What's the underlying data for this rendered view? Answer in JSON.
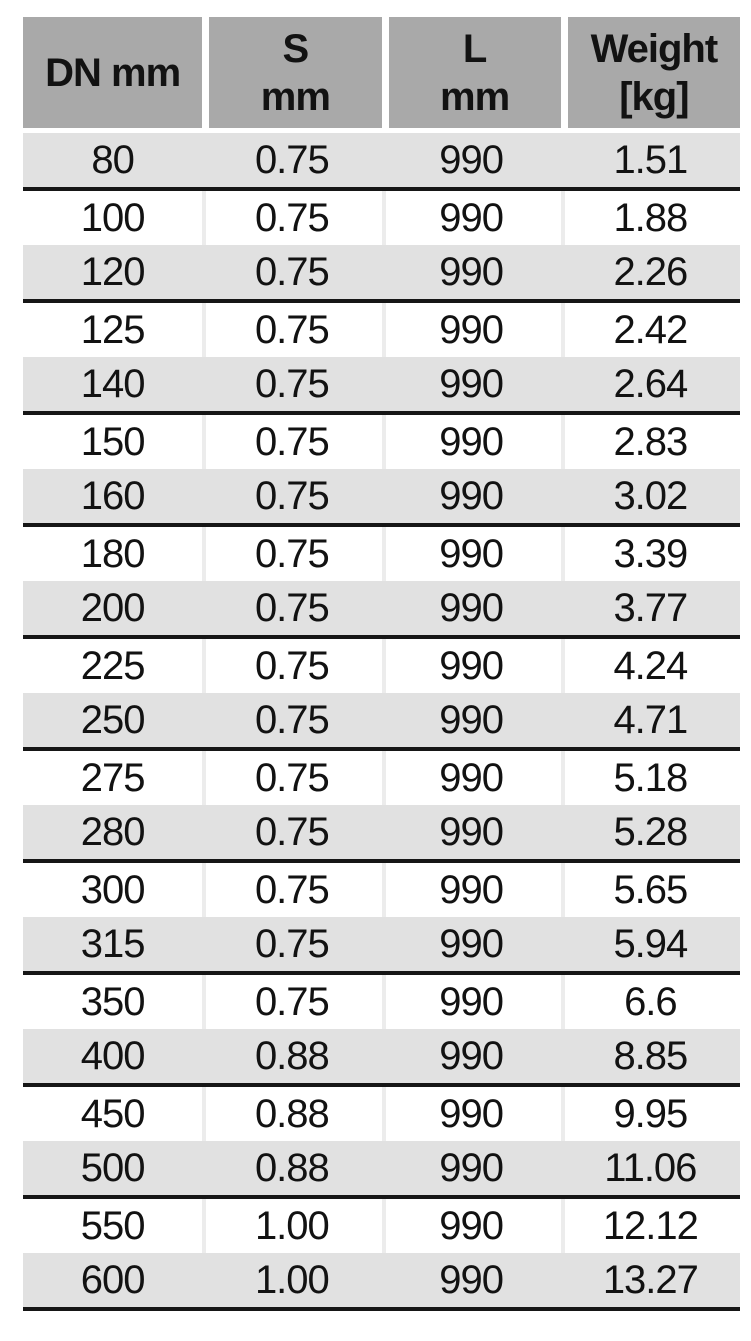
{
  "table": {
    "columns": [
      {
        "id": "dn",
        "label_lines": [
          "DN mm"
        ]
      },
      {
        "id": "s",
        "label_lines": [
          "S",
          "mm"
        ]
      },
      {
        "id": "l",
        "label_lines": [
          "L",
          "mm"
        ]
      },
      {
        "id": "weight",
        "label_lines": [
          "Weight",
          "[kg]"
        ]
      }
    ],
    "rows": [
      [
        "80",
        "0.75",
        "990",
        "1.51"
      ],
      [
        "100",
        "0.75",
        "990",
        "1.88"
      ],
      [
        "120",
        "0.75",
        "990",
        "2.26"
      ],
      [
        "125",
        "0.75",
        "990",
        "2.42"
      ],
      [
        "140",
        "0.75",
        "990",
        "2.64"
      ],
      [
        "150",
        "0.75",
        "990",
        "2.83"
      ],
      [
        "160",
        "0.75",
        "990",
        "3.02"
      ],
      [
        "180",
        "0.75",
        "990",
        "3.39"
      ],
      [
        "200",
        "0.75",
        "990",
        "3.77"
      ],
      [
        "225",
        "0.75",
        "990",
        "4.24"
      ],
      [
        "250",
        "0.75",
        "990",
        "4.71"
      ],
      [
        "275",
        "0.75",
        "990",
        "5.18"
      ],
      [
        "280",
        "0.75",
        "990",
        "5.28"
      ],
      [
        "300",
        "0.75",
        "990",
        "5.65"
      ],
      [
        "315",
        "0.75",
        "990",
        "5.94"
      ],
      [
        "350",
        "0.75",
        "990",
        "6.6"
      ],
      [
        "400",
        "0.88",
        "990",
        "8.85"
      ],
      [
        "450",
        "0.88",
        "990",
        "9.95"
      ],
      [
        "500",
        "0.88",
        "990",
        "11.06"
      ],
      [
        "550",
        "1.00",
        "990",
        "12.12"
      ],
      [
        "600",
        "1.00",
        "990",
        "13.27"
      ]
    ]
  },
  "colors": {
    "header_bg": "#a9a9a9",
    "row_shaded_bg": "#e1e1e1",
    "row_plain_bg": "#ffffff",
    "border": "#161616",
    "text": "#121212"
  }
}
